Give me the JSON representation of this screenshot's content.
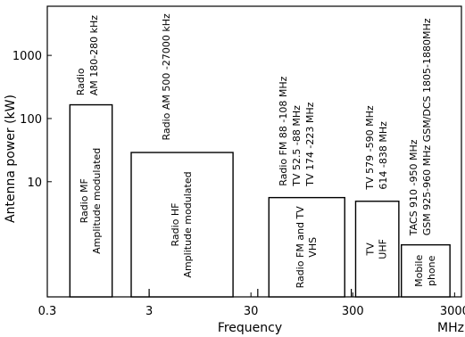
{
  "chart_data": {
    "type": "bar",
    "title": "",
    "xlabel": "Frequency",
    "xunit": "MHz",
    "ylabel": "Antenna power  (kW)",
    "x_scale": "log",
    "y_scale": "log",
    "xlim": [
      0.3,
      3500
    ],
    "ylim": [
      0.15,
      6000
    ],
    "xticks": [
      {
        "value": 0.3,
        "label": "0.3"
      },
      {
        "value": 3,
        "label": "3"
      },
      {
        "value": 30,
        "label": "30"
      },
      {
        "value": 300,
        "label": "300"
      },
      {
        "value": 3000,
        "label": "3000"
      }
    ],
    "yticks": [
      {
        "value": 10,
        "label": "10"
      },
      {
        "value": 100,
        "label": "100"
      },
      {
        "value": 1000,
        "label": "1000"
      }
    ],
    "bars": [
      {
        "x_start": 0.5,
        "x_end": 1.3,
        "power_kw": 165,
        "label": [
          "Radio  MF",
          "Amplitude modulated"
        ]
      },
      {
        "x_start": 2.0,
        "x_end": 20,
        "power_kw": 29,
        "label": [
          "Radio  HF",
          "Amplitude modulated"
        ]
      },
      {
        "x_start": 45,
        "x_end": 250,
        "power_kw": 5.6,
        "label": [
          "Radio FM and TV",
          "VHS"
        ]
      },
      {
        "x_start": 320,
        "x_end": 850,
        "power_kw": 4.9,
        "label": [
          "TV",
          "UHF"
        ]
      },
      {
        "x_start": 900,
        "x_end": 2700,
        "power_kw": 1.0,
        "label": [
          "Mobile",
          "phone"
        ]
      }
    ],
    "annotations": [
      {
        "x": 0.75,
        "y": 230,
        "lines": [
          "Radio",
          "AM 180-280 kHz"
        ]
      },
      {
        "x": 4.5,
        "y": 45,
        "lines": [
          "Radio AM 500 -27000 kHz"
        ]
      },
      {
        "x": 85,
        "y": 8.5,
        "lines": [
          "Radio FM 88 -108 MHz",
          "TV 52.5 -88 MHz",
          "TV 174 -223 MHz"
        ]
      },
      {
        "x": 520,
        "y": 7.5,
        "lines": [
          "TV  579 -590 MHz",
          "614 -838 MHz"
        ]
      },
      {
        "x": 1400,
        "y": 1.4,
        "lines": [
          "TACS 910 -950 MHz",
          "GSM 925-960 MHz  GSM/DCS 1805-1880MHz"
        ]
      }
    ],
    "markers": [
      3,
      35,
      290
    ],
    "grid": false
  }
}
